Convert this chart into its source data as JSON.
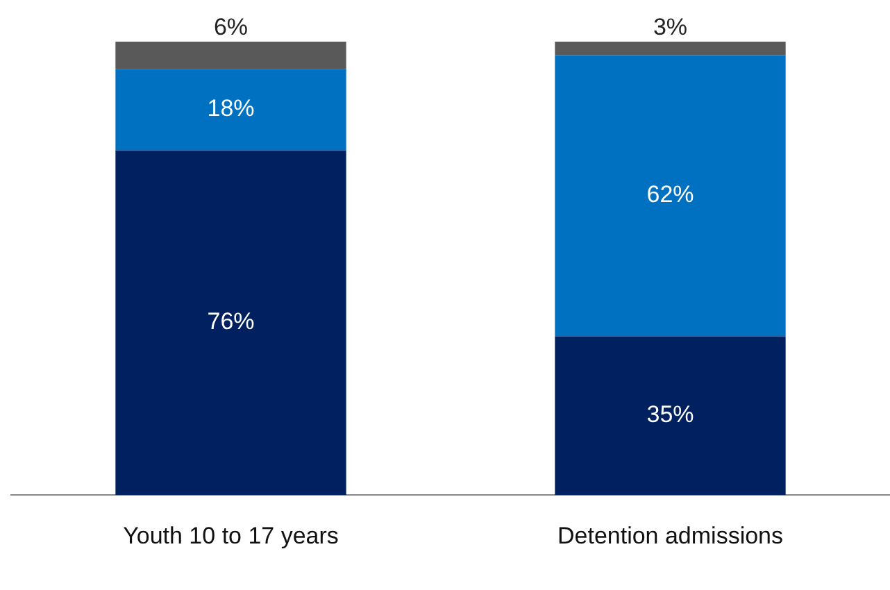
{
  "chart_data": {
    "type": "bar",
    "stacked": true,
    "categories": [
      "Youth 10 to 17 years",
      "Detention admissions"
    ],
    "series": [
      {
        "color": "#002060",
        "values": [
          76,
          35
        ],
        "value_labels": [
          "76%",
          "35%"
        ]
      },
      {
        "color": "#0070c0",
        "values": [
          18,
          62
        ],
        "value_labels": [
          "18%",
          "62%"
        ]
      },
      {
        "color": "#595959",
        "values": [
          6,
          3
        ],
        "value_labels": [
          "6%",
          "3%"
        ]
      }
    ],
    "ylim": [
      0,
      100
    ],
    "tick_labels": "x",
    "grid": false,
    "legend": false
  }
}
